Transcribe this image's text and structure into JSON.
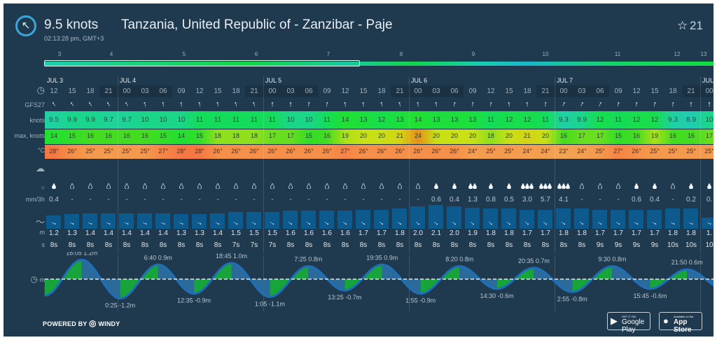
{
  "header": {
    "wind_dir_icon": "arrow-circle-icon",
    "speed": "9.5 knots",
    "location": "Tanzania, United Republic of - Zanzibar - Paje",
    "local_time": "02:13:28 pm, GMT+3",
    "favorites_icon": "star-icon",
    "favorites_count": "21"
  },
  "timeline": {
    "days": [
      "3",
      "4",
      "5",
      "6",
      "7",
      "8",
      "9",
      "10",
      "11",
      "12",
      "13"
    ],
    "selected_range": [
      "3",
      "7"
    ]
  },
  "row_labels": {
    "model": "GFS27",
    "wind": "knots",
    "gust": "max, knots",
    "temp": "°C",
    "rain": "mm/3h",
    "wave_height": "m",
    "wave_period": "s",
    "tide": "m"
  },
  "days": [
    {
      "label": "JUL 3",
      "start_col": 0
    },
    {
      "label": "JUL 4",
      "start_col": 4
    },
    {
      "label": "JUL 5",
      "start_col": 12
    },
    {
      "label": "JUL 6",
      "start_col": 20
    },
    {
      "label": "JUL 7",
      "start_col": 28
    },
    {
      "label": "JUL",
      "start_col": 36
    }
  ],
  "columns": {
    "hour": [
      "12",
      "15",
      "18",
      "21",
      "00",
      "03",
      "06",
      "09",
      "12",
      "15",
      "18",
      "21",
      "00",
      "03",
      "06",
      "09",
      "12",
      "15",
      "18",
      "21",
      "00",
      "03",
      "06",
      "09",
      "12",
      "15",
      "18",
      "21",
      "00",
      "03",
      "06",
      "09",
      "12",
      "15",
      "18",
      "21",
      "00"
    ],
    "wind_dir_deg": [
      -35,
      -35,
      -35,
      -35,
      -30,
      -15,
      -10,
      -5,
      -8,
      -10,
      -15,
      -18,
      0,
      0,
      5,
      5,
      -5,
      -5,
      -10,
      -12,
      -5,
      -5,
      10,
      5,
      5,
      -5,
      -5,
      5,
      25,
      25,
      25,
      10,
      5,
      10,
      5,
      0,
      0
    ],
    "wind_knots": [
      "9.5",
      "9.9",
      "9.9",
      "9.7",
      "9.7",
      "10",
      "10",
      "10",
      "11",
      "11",
      "11",
      "11",
      "11",
      "10",
      "10",
      "11",
      "14",
      "13",
      "12",
      "13",
      "14",
      "13",
      "13",
      "13",
      "11",
      "12",
      "12",
      "11",
      "9.3",
      "9.9",
      "12",
      "11",
      "12",
      "12",
      "9.3",
      "8.9",
      "10"
    ],
    "gust_knots": [
      "14",
      "15",
      "16",
      "16",
      "16",
      "16",
      "15",
      "14",
      "15",
      "18",
      "18",
      "18",
      "17",
      "17",
      "15",
      "16",
      "19",
      "20",
      "20",
      "21",
      "24",
      "20",
      "20",
      "20",
      "18",
      "20",
      "21",
      "20",
      "16",
      "17",
      "17",
      "15",
      "16",
      "19",
      "16",
      "16",
      "17"
    ],
    "temp": [
      "28°",
      "26°",
      "25°",
      "25°",
      "25°",
      "25°",
      "27°",
      "28°",
      "28°",
      "26°",
      "26°",
      "26°",
      "26°",
      "26°",
      "26°",
      "26°",
      "27°",
      "26°",
      "26°",
      "26°",
      "26°",
      "26°",
      "26°",
      "24°",
      "25°",
      "25°",
      "24°",
      "24°",
      "23°",
      "24°",
      "25°",
      "27°",
      "26°",
      "25°",
      "25°",
      "25°",
      "25°"
    ],
    "rain_icon": [
      "drop",
      "none",
      "none",
      "none",
      "none",
      "none",
      "none",
      "none",
      "none",
      "none",
      "none",
      "none",
      "none",
      "none",
      "none",
      "none",
      "none",
      "none",
      "none",
      "none",
      "none",
      "drop",
      "drop",
      "drops2",
      "drop",
      "drop",
      "drops3",
      "drops3",
      "drops3",
      "none",
      "none",
      "none",
      "drop",
      "drop",
      "none",
      "drop",
      "drop"
    ],
    "rain_mm": [
      "0.4",
      "-",
      "-",
      "-",
      "-",
      "-",
      "-",
      "-",
      "-",
      "-",
      "-",
      "-",
      "-",
      "-",
      "-",
      "-",
      "-",
      "-",
      "-",
      "-",
      "-",
      "0.6",
      "0.4",
      "1.3",
      "0.8",
      "0.5",
      "3.0",
      "5.7",
      "4.1",
      "-",
      "-",
      "-",
      "0.6",
      "0.4",
      "-",
      "0.2",
      "0."
    ],
    "wave_m": [
      "1.2",
      "1.3",
      "1.4",
      "1.4",
      "1.4",
      "1.4",
      "1.4",
      "1.3",
      "1.3",
      "1.4",
      "1.5",
      "1.5",
      "1.5",
      "1.6",
      "1.6",
      "1.6",
      "1.6",
      "1.7",
      "1.7",
      "1.8",
      "2.0",
      "2.1",
      "2.0",
      "1.9",
      "1.8",
      "1.8",
      "1.7",
      "1.7",
      "1.8",
      "1.8",
      "1.7",
      "1.7",
      "1.7",
      "1.7",
      "1.8",
      "1.8",
      "1."
    ],
    "wave_dir_deg": [
      110,
      110,
      110,
      110,
      110,
      110,
      110,
      110,
      110,
      115,
      120,
      120,
      120,
      125,
      125,
      125,
      125,
      125,
      125,
      125,
      130,
      130,
      130,
      130,
      130,
      130,
      130,
      130,
      125,
      125,
      120,
      120,
      115,
      115,
      110,
      110,
      110
    ],
    "wave_s": [
      "8s",
      "8s",
      "8s",
      "8s",
      "8s",
      "8s",
      "8s",
      "8s",
      "8s",
      "8s",
      "7s",
      "7s",
      "7s",
      "8s",
      "8s",
      "8s",
      "8s",
      "8s",
      "8s",
      "8s",
      "8s",
      "8s",
      "8s",
      "8s",
      "8s",
      "8s",
      "8s",
      "8s",
      "8s",
      "8s",
      "9s",
      "9s",
      "9s",
      "9s",
      "10s",
      "10s",
      "10"
    ]
  },
  "tide": [
    {
      "day": 0,
      "time": "18:05",
      "height": 1.2,
      "label": "18:05 1.2m"
    },
    {
      "day": 1,
      "time": "0:25",
      "height": -1.2,
      "label": "0:25 -1.2m"
    },
    {
      "day": 1,
      "time": "6:40",
      "height": 0.9,
      "label": "6:40 0.9m"
    },
    {
      "day": 1,
      "time": "12:35",
      "height": -0.9,
      "label": "12:35 -0.9m"
    },
    {
      "day": 1,
      "time": "18:45",
      "height": 1.0,
      "label": "18:45 1.0m"
    },
    {
      "day": 2,
      "time": "1:05",
      "height": -1.1,
      "label": "1:05 -1.1m"
    },
    {
      "day": 2,
      "time": "7:25",
      "height": 0.8,
      "label": "7:25 0.8m"
    },
    {
      "day": 2,
      "time": "13:25",
      "height": -0.7,
      "label": "13:25 -0.7m"
    },
    {
      "day": 2,
      "time": "19:35",
      "height": 0.9,
      "label": "19:35 0.9m"
    },
    {
      "day": 3,
      "time": "1:55",
      "height": -0.9,
      "label": "1:55 -0.9m"
    },
    {
      "day": 3,
      "time": "8:20",
      "height": 0.8,
      "label": "8:20 0.8m"
    },
    {
      "day": 3,
      "time": "14:30",
      "height": -0.6,
      "label": "14:30 -0.6m"
    },
    {
      "day": 3,
      "time": "20:35",
      "height": 0.7,
      "label": "20:35 0.7m"
    },
    {
      "day": 4,
      "time": "2:55",
      "height": -0.8,
      "label": "2:55 -0.8m"
    },
    {
      "day": 4,
      "time": "9:30",
      "height": 0.8,
      "label": "9:30 0.8m"
    },
    {
      "day": 4,
      "time": "15:45",
      "height": -0.6,
      "label": "15:45 -0.6m"
    },
    {
      "day": 4,
      "time": "21:50",
      "height": 0.6,
      "label": "21:50 0.6m"
    }
  ],
  "colors": {
    "background": "#1f3a4f",
    "tide_rising": "#17a53a",
    "tide_falling": "#2b6b9b",
    "tide_line": "#1f6fb8",
    "wave_bar": "#0d5a8f",
    "accent": "#3aa6dc"
  },
  "footer": {
    "powered_by": "POWERED BY",
    "brand": "WINDY",
    "google_play_small": "GET IT ON",
    "google_play": "Google Play",
    "app_store_small": "Available on the",
    "app_store": "App Store"
  }
}
